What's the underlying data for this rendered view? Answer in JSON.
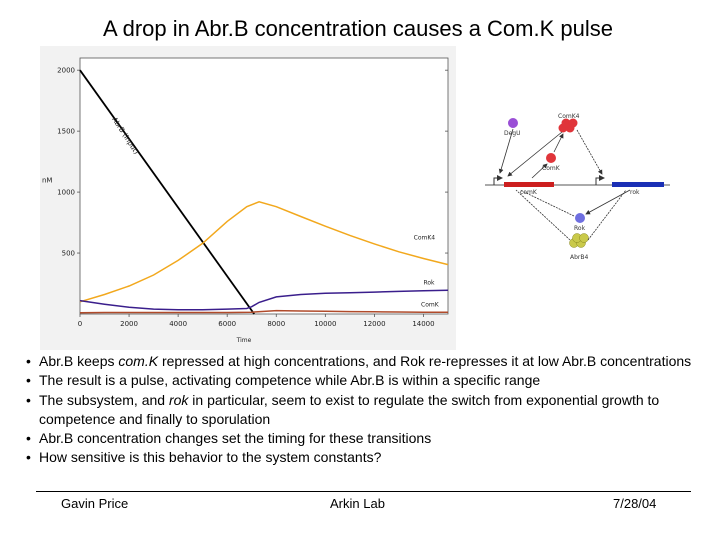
{
  "slide": {
    "title": "A drop in Abr.B concentration causes a Com.K pulse"
  },
  "chart_data": {
    "type": "line",
    "title": "",
    "xlabel": "Time",
    "ylabel": "nM",
    "xlim": [
      0,
      15000
    ],
    "ylim": [
      0,
      2100
    ],
    "x_ticks": [
      0,
      2000,
      4000,
      6000,
      8000,
      10000,
      12000,
      14000
    ],
    "y_ticks": [
      500,
      1000,
      1500,
      2000
    ],
    "grid": false,
    "legend": "none",
    "series": [
      {
        "name": "AbrB (input)",
        "color": "#000000",
        "x": [
          0,
          7100
        ],
        "y": [
          2000,
          0
        ]
      },
      {
        "name": "ComK4",
        "color": "#f2a81d",
        "x": [
          0,
          1000,
          2000,
          3000,
          4000,
          5000,
          6000,
          6800,
          7300,
          8000,
          9000,
          10000,
          11000,
          12000,
          13000,
          14000,
          15000
        ],
        "y": [
          100,
          160,
          230,
          320,
          440,
          580,
          760,
          880,
          920,
          880,
          800,
          720,
          645,
          575,
          510,
          455,
          405
        ]
      },
      {
        "name": "Rok",
        "color": "#3a1e8c",
        "x": [
          0,
          1000,
          2000,
          3000,
          4000,
          5000,
          6000,
          6800,
          7000,
          7300,
          8000,
          9000,
          10000,
          11000,
          12000,
          13000,
          14000,
          15000
        ],
        "y": [
          110,
          80,
          55,
          40,
          35,
          35,
          40,
          45,
          60,
          95,
          140,
          160,
          170,
          175,
          180,
          185,
          190,
          195
        ]
      },
      {
        "name": "ComK",
        "color": "#b04a2a",
        "x": [
          0,
          1000,
          2000,
          3000,
          4000,
          5000,
          6000,
          7000,
          8000,
          9000,
          10000,
          11000,
          12000,
          13000,
          14000,
          15000
        ],
        "y": [
          10,
          12,
          12,
          12,
          12,
          12,
          12,
          15,
          28,
          25,
          22,
          20,
          18,
          16,
          15,
          14
        ]
      }
    ],
    "annotations": [
      "AbrB (input)",
      "ComK4",
      "Rok",
      "ComK"
    ]
  },
  "diagram": {
    "labels": {
      "degu": "DegU",
      "comk4": "ComK4",
      "comk": "ComK",
      "comk_gene": "comK",
      "rok_gene": "rok",
      "rok": "Rok",
      "abrb4": "AbrB4"
    },
    "colors": {
      "comk_gene": "#cc1e1e",
      "rok_gene": "#1a2fb5",
      "degu": "#9a4fd6",
      "protein_red": "#e0353a",
      "rok": "#6f6fe0",
      "abrb": "#c9c94a"
    }
  },
  "bullets": [
    {
      "pre": "Abr.B keeps ",
      "em": "com.K",
      "post": " repressed at high concentrations, and Rok re-represses it at low Abr.B concentrations"
    },
    {
      "pre": "The result is a pulse, activating competence while Abr.B is within a specific range",
      "em": "",
      "post": ""
    },
    {
      "pre": "The subsystem, and ",
      "em": "rok",
      "post": " in particular, seem to exist to regulate the switch from exponential growth to competence and finally to sporulation"
    },
    {
      "pre": "Abr.B concentration changes set the timing for these transitions",
      "em": "",
      "post": ""
    },
    {
      "pre": "How sensitive is this behavior to the system constants?",
      "em": "",
      "post": ""
    }
  ],
  "footer": {
    "author": "Gavin Price",
    "lab": "Arkin Lab",
    "date": "7/28/04"
  }
}
